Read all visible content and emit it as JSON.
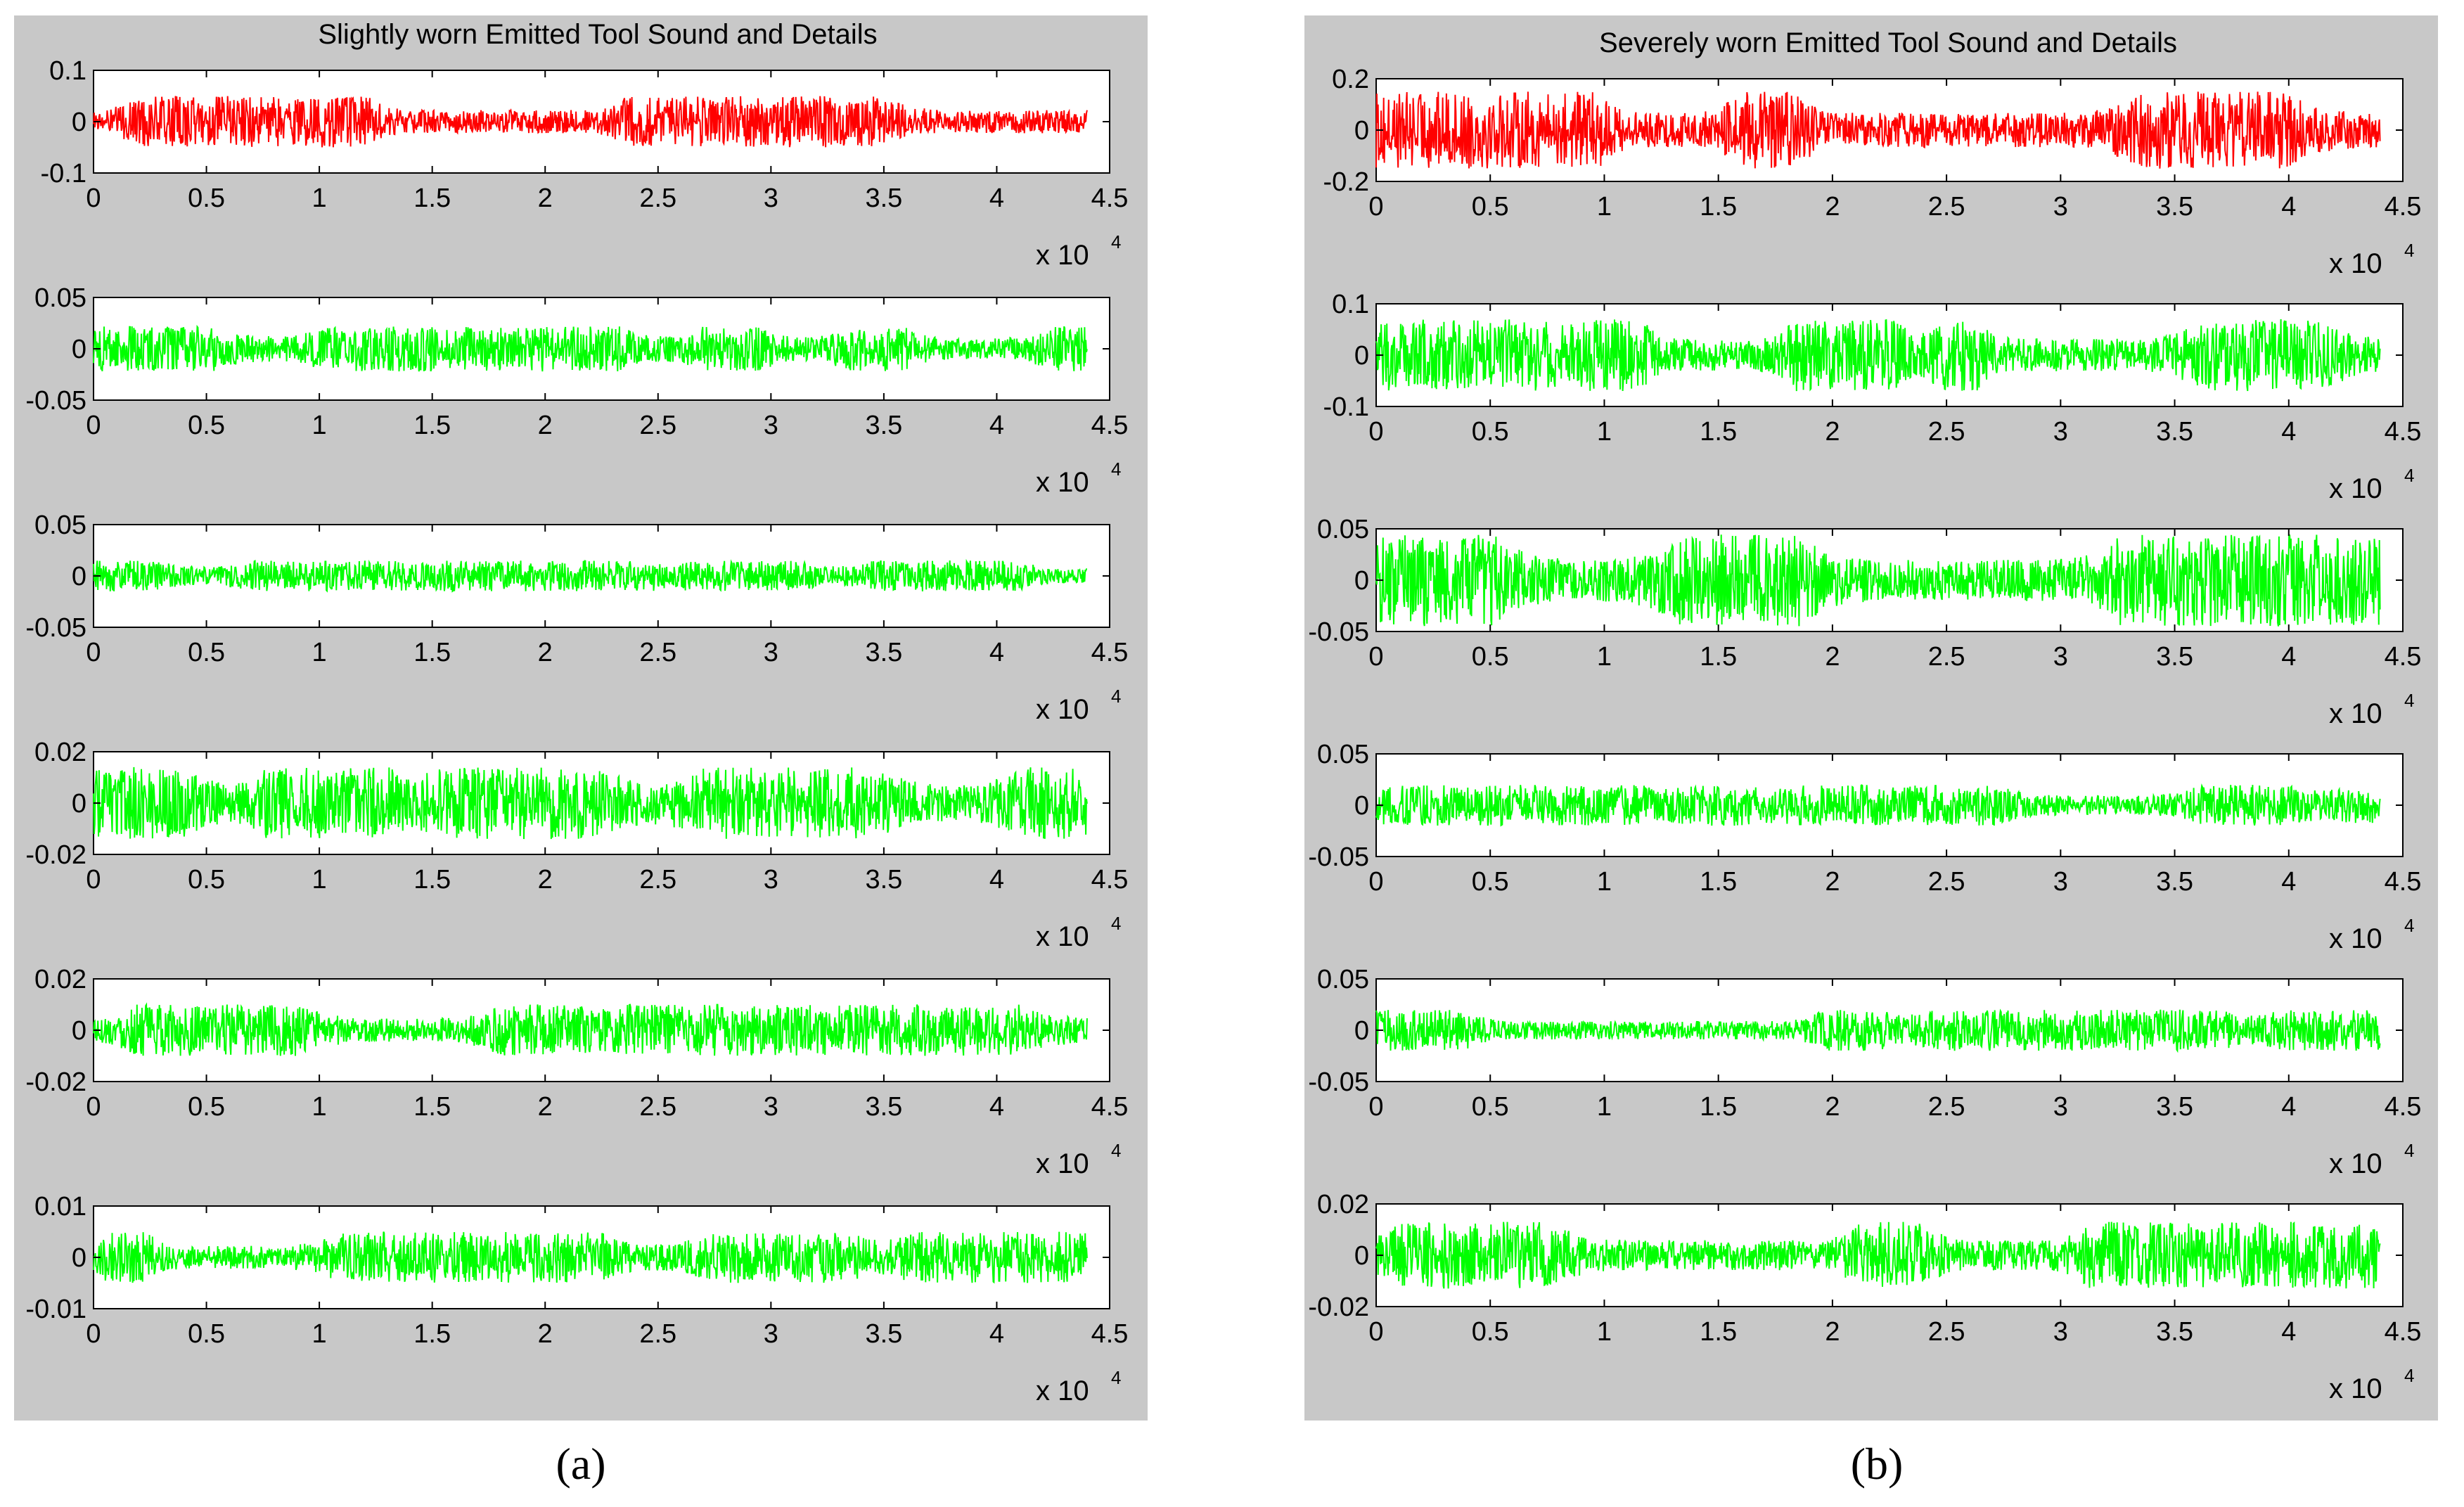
{
  "chart_data": [
    {
      "type": "line",
      "title": "Slightly worn Emitted Tool Sound and Details",
      "caption": "(a)",
      "series_color_signal": "#ff0000",
      "series_color_details": "#00ff00",
      "subplots": [
        {
          "color": "#ff0000",
          "ylim": [
            -0.1,
            0.1
          ],
          "yticks": [
            "0.1",
            "0",
            "-0.1"
          ],
          "amplitude": 0.05
        },
        {
          "color": "#00ff00",
          "ylim": [
            -0.05,
            0.05
          ],
          "yticks": [
            "0.05",
            "0",
            "-0.05"
          ],
          "amplitude": 0.022
        },
        {
          "color": "#00ff00",
          "ylim": [
            -0.05,
            0.05
          ],
          "yticks": [
            "0.05",
            "0",
            "-0.05"
          ],
          "amplitude": 0.015
        },
        {
          "color": "#00ff00",
          "ylim": [
            -0.02,
            0.02
          ],
          "yticks": [
            "0.02",
            "0",
            "-0.02"
          ],
          "amplitude": 0.014
        },
        {
          "color": "#00ff00",
          "ylim": [
            -0.02,
            0.02
          ],
          "yticks": [
            "0.02",
            "0",
            "-0.02"
          ],
          "amplitude": 0.01
        },
        {
          "color": "#00ff00",
          "ylim": [
            -0.01,
            0.01
          ],
          "yticks": [
            "0.01",
            "0",
            "-0.01"
          ],
          "amplitude": 0.005
        }
      ]
    },
    {
      "type": "line",
      "title": "Severely worn Emitted Tool Sound and Details",
      "caption": "(b)",
      "series_color_signal": "#ff0000",
      "series_color_details": "#00ff00",
      "subplots": [
        {
          "color": "#ff0000",
          "ylim": [
            -0.2,
            0.2
          ],
          "yticks": [
            "0.2",
            "0",
            "-0.2"
          ],
          "amplitude": 0.15
        },
        {
          "color": "#00ff00",
          "ylim": [
            -0.1,
            0.1
          ],
          "yticks": [
            "0.1",
            "0",
            "-0.1"
          ],
          "amplitude": 0.07
        },
        {
          "color": "#00ff00",
          "ylim": [
            -0.05,
            0.05
          ],
          "yticks": [
            "0.05",
            "0",
            "-0.05"
          ],
          "amplitude": 0.045
        },
        {
          "color": "#00ff00",
          "ylim": [
            -0.05,
            0.05
          ],
          "yticks": [
            "0.05",
            "0",
            "-0.05"
          ],
          "amplitude": 0.02
        },
        {
          "color": "#00ff00",
          "ylim": [
            -0.05,
            0.05
          ],
          "yticks": [
            "0.05",
            "0",
            "-0.05"
          ],
          "amplitude": 0.02
        },
        {
          "color": "#00ff00",
          "ylim": [
            -0.02,
            0.02
          ],
          "yticks": [
            "0.02",
            "0",
            "-0.02"
          ],
          "amplitude": 0.013
        }
      ]
    }
  ],
  "x_axis": {
    "xlim": [
      0,
      45000
    ],
    "signal_length": 44000,
    "tick_labels": [
      "0",
      "0.5",
      "1",
      "1.5",
      "2",
      "2.5",
      "3",
      "3.5",
      "4",
      "4.5"
    ],
    "multiplier_base": "x 10",
    "multiplier_exp": "4"
  }
}
